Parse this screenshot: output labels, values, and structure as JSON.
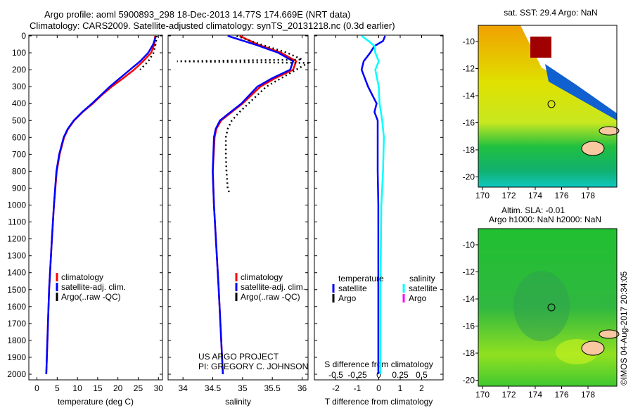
{
  "title_line1": "Argo profile: aoml 5900893_298 18-Dec-2013 14.77S 174.669E (NRT data)",
  "title_line2": "Climatology: CARS2009. Satellite-adjusted climatology: synTS_20131218.nc (0.3d earlier)",
  "credit": "©IMOS 04-Aug-2017 20:34:05",
  "project": "US ARGO PROJECT",
  "pi": "PI: GREGORY C. JOHNSON",
  "chart_data": [
    {
      "type": "line",
      "name": "temperature",
      "xlabel": "temperature (deg C)",
      "ylabel": "",
      "xlim": [
        -2,
        31
      ],
      "ylim": [
        2040,
        0
      ],
      "xticks": [
        0,
        5,
        10,
        15,
        20,
        25,
        30
      ],
      "yticks": [
        0,
        100,
        200,
        300,
        400,
        500,
        600,
        700,
        800,
        900,
        1000,
        1100,
        1200,
        1300,
        1400,
        1500,
        1600,
        1700,
        1800,
        1900,
        2000
      ],
      "legend": [
        "climatology",
        "satellite-adj. clim.",
        "Argo(..raw -QC)"
      ],
      "series": [
        {
          "name": "climatology",
          "color": "#ff0000",
          "depth": [
            0,
            50,
            100,
            150,
            200,
            250,
            300,
            350,
            400,
            450,
            500,
            550,
            600,
            700,
            800,
            1000,
            1200,
            1500,
            2000
          ],
          "values": [
            29.2,
            29.0,
            28.2,
            26.2,
            24.0,
            21.3,
            18.5,
            16.0,
            13.8,
            11.3,
            9.2,
            7.7,
            6.7,
            5.6,
            4.9,
            4.2,
            3.7,
            3.0,
            2.3
          ]
        },
        {
          "name": "satellite-adj. clim.",
          "color": "#0000ff",
          "depth": [
            0,
            50,
            100,
            150,
            200,
            250,
            300,
            350,
            400,
            450,
            500,
            550,
            600,
            700,
            800,
            1000,
            1200,
            1500,
            2000
          ],
          "values": [
            29.4,
            28.7,
            27.5,
            25.5,
            23.0,
            20.5,
            18.0,
            15.8,
            13.6,
            11.2,
            9.1,
            7.6,
            6.6,
            5.5,
            4.8,
            4.2,
            3.7,
            3.0,
            2.3
          ]
        },
        {
          "name": "Argo",
          "color": "#000000",
          "depth": [
            0,
            20,
            50,
            100,
            150,
            200
          ],
          "values": [
            29.6,
            29.5,
            29.3,
            28.8,
            27.5,
            25.5
          ]
        }
      ]
    },
    {
      "type": "line",
      "name": "salinity",
      "xlabel": "salinity",
      "xlim": [
        33.75,
        36.1
      ],
      "ylim": [
        2040,
        0
      ],
      "xticks": [
        34,
        34.5,
        35,
        35.5,
        36
      ],
      "legend": [
        "climatology",
        "satellite-adj. clim.",
        "Argo(..raw -QC)"
      ],
      "series": [
        {
          "name": "climatology",
          "color": "#ff0000",
          "depth": [
            0,
            50,
            100,
            150,
            200,
            250,
            300,
            400,
            450,
            500,
            550,
            600,
            800,
            1000,
            1500,
            2000
          ],
          "values": [
            34.95,
            35.25,
            35.65,
            35.9,
            35.85,
            35.55,
            35.3,
            35.0,
            34.82,
            34.64,
            34.56,
            34.53,
            34.5,
            34.52,
            34.6,
            34.67
          ]
        },
        {
          "name": "satellite-adj. clim.",
          "color": "#0000ff",
          "depth": [
            0,
            50,
            100,
            150,
            200,
            250,
            300,
            400,
            450,
            500,
            550,
            600,
            800,
            1000,
            1500,
            2000
          ],
          "values": [
            34.75,
            35.2,
            35.6,
            35.85,
            35.8,
            35.5,
            35.25,
            34.98,
            34.8,
            34.62,
            34.55,
            34.52,
            34.5,
            34.52,
            34.6,
            34.67
          ]
        },
        {
          "name": "Argo",
          "color": "#000000",
          "depth": [
            0,
            50,
            100,
            140,
            150,
            160,
            170,
            180,
            200,
            250,
            300,
            400,
            450,
            500,
            550,
            600,
            700,
            800,
            900,
            930
          ],
          "values": [
            34.9,
            35.3,
            35.75,
            36.0,
            33.9,
            36.1,
            36.05,
            36.0,
            35.9,
            35.65,
            35.4,
            35.1,
            34.95,
            34.82,
            34.75,
            34.72,
            34.72,
            34.73,
            34.75,
            34.78
          ]
        }
      ]
    },
    {
      "type": "line",
      "name": "difference",
      "xlabel": "T difference from climatology",
      "x2label": "S difference from climatology",
      "xlim": [
        -3,
        3
      ],
      "ylim": [
        2040,
        0
      ],
      "xticks": [
        -2,
        -1,
        0,
        1,
        2
      ],
      "x2ticks": [
        -0.5,
        -0.25,
        0,
        0.25,
        0.5
      ],
      "legend": {
        "temperature_header": "temperature",
        "salinity_header": "salinity",
        "items": [
          "satellite",
          "Argo",
          "satellite",
          "Argo"
        ]
      },
      "series": [
        {
          "name": "temperature satellite",
          "color": "#0000ff",
          "depth": [
            0,
            30,
            60,
            100,
            150,
            200,
            250,
            300,
            350,
            400,
            450,
            500,
            600,
            800,
            1000,
            1500,
            2000
          ],
          "values": [
            0.3,
            0.2,
            -0.2,
            -0.4,
            -0.7,
            -0.8,
            -0.65,
            -0.5,
            -0.3,
            -0.1,
            -0.2,
            -0.05,
            -0.05,
            -0.05,
            -0.02,
            -0.02,
            -0.02
          ]
        },
        {
          "name": "salinity satellite",
          "color": "#00ffff",
          "depth": [
            0,
            30,
            60,
            100,
            150,
            200,
            300,
            400,
            500,
            600,
            800,
            1000,
            1500,
            2000
          ],
          "values": [
            -0.2,
            -0.12,
            -0.05,
            -0.04,
            0.0,
            -0.04,
            0.0,
            0.01,
            0.04,
            0.06,
            0.05,
            0.03,
            0.02,
            0.02
          ]
        }
      ]
    }
  ],
  "maps": [
    {
      "title": "sat. SST: 29.4 Argo: NaN",
      "xticks": [
        "170",
        "172",
        "174",
        "176",
        "178"
      ],
      "yticks": [
        "-10",
        "-12",
        "-14",
        "-16",
        "-18",
        "-20"
      ]
    },
    {
      "title_line1": "Altim. SLA: -0.01",
      "title_line2": "Argo h1000: NaN h2000: NaN",
      "xticks": [
        "170",
        "172",
        "174",
        "176",
        "178"
      ],
      "yticks": [
        "-10",
        "-12",
        "-14",
        "-16",
        "-18",
        "-20"
      ]
    }
  ],
  "colors": {
    "climatology": "#ff0000",
    "satellite": "#0000ff",
    "argo": "#000000",
    "sal_satellite": "#00ffff",
    "sal_argo": "#ff00ff"
  }
}
